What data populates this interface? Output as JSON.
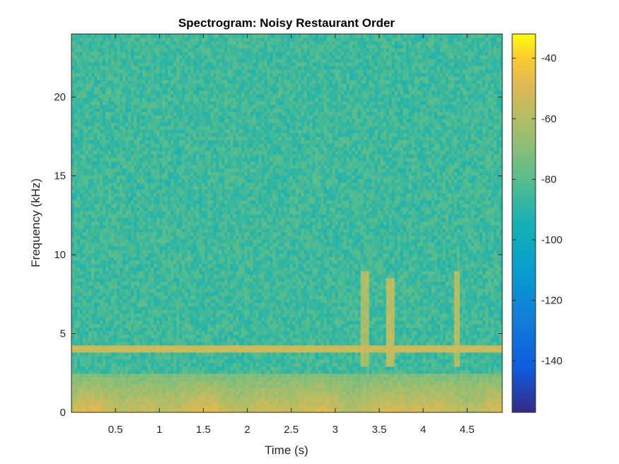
{
  "chart_data": {
    "type": "heatmap",
    "title": "Spectrogram: Noisy Restaurant Order",
    "xlabel": "Time (s)",
    "ylabel": "Frequency (kHz)",
    "xlim": [
      0,
      4.9
    ],
    "ylim": [
      0,
      24
    ],
    "x_ticks": [
      0.5,
      1,
      1.5,
      2,
      2.5,
      3,
      3.5,
      4,
      4.5
    ],
    "x_tick_labels": [
      "0.5",
      "1",
      "1.5",
      "2",
      "2.5",
      "3",
      "3.5",
      "4",
      "4.5"
    ],
    "y_ticks": [
      0,
      5,
      10,
      15,
      20
    ],
    "y_tick_labels": [
      "0",
      "5",
      "10",
      "15",
      "20"
    ],
    "colorbar": {
      "label": "",
      "clim": [
        -157,
        -32
      ],
      "ticks": [
        -140,
        -120,
        -100,
        -80,
        -60,
        -40
      ],
      "tick_labels": [
        "-140",
        "-120",
        "-100",
        "-80",
        "-60",
        "-40"
      ]
    },
    "colormap": "parula",
    "background_level_db": -85,
    "features": [
      {
        "kind": "tone",
        "frequency_khz": 4.0,
        "level_db": -55
      },
      {
        "kind": "speech_energy",
        "frequency_range_khz": [
          0,
          2.5
        ],
        "level_db": -55
      },
      {
        "kind": "transient",
        "time_s": 3.33,
        "frequency_range_khz": [
          3,
          9
        ],
        "level_db": -62
      },
      {
        "kind": "transient",
        "time_s": 3.62,
        "frequency_range_khz": [
          3,
          8.5
        ],
        "level_db": -58
      },
      {
        "kind": "transient",
        "time_s": 4.38,
        "frequency_range_khz": [
          3,
          9
        ],
        "level_db": -60
      }
    ]
  }
}
